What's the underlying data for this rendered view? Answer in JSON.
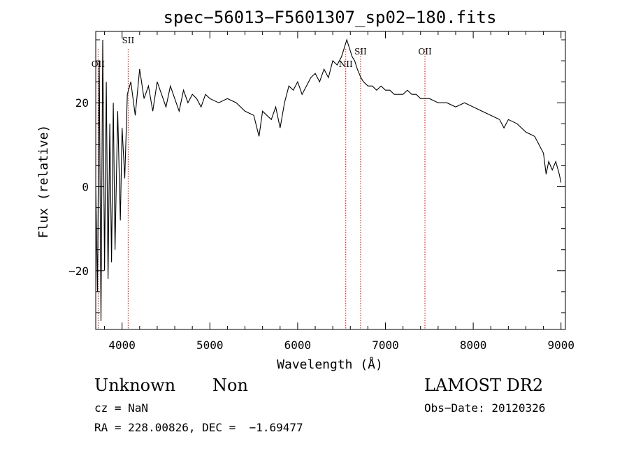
{
  "chart_data": {
    "type": "line",
    "title": "spec−56013−F5601307_sp02−180.fits",
    "xlabel": "Wavelength (Å)",
    "ylabel": "Flux (relative)",
    "xlim": [
      3700,
      9050
    ],
    "ylim": [
      -34,
      37
    ],
    "xticks": [
      4000,
      5000,
      6000,
      7000,
      8000,
      9000
    ],
    "xtick_labels": [
      "4000",
      "5000",
      "6000",
      "7000",
      "8000",
      "9000"
    ],
    "yticks": [
      -20,
      0,
      20
    ],
    "ytick_labels": [
      "−20",
      "0",
      "20"
    ],
    "series": [
      {
        "x": [
          3700,
          3720,
          3740,
          3760,
          3780,
          3800,
          3820,
          3840,
          3860,
          3880,
          3900,
          3920,
          3950,
          3980,
          4000,
          4030,
          4060,
          4100,
          4150,
          4200,
          4250,
          4300,
          4350,
          4400,
          4450,
          4500,
          4550,
          4600,
          4650,
          4700,
          4750,
          4800,
          4850,
          4900,
          4950,
          5000,
          5100,
          5200,
          5300,
          5400,
          5500,
          5560,
          5600,
          5650,
          5700,
          5750,
          5800,
          5850,
          5900,
          5950,
          6000,
          6050,
          6100,
          6150,
          6200,
          6250,
          6300,
          6350,
          6400,
          6450,
          6500,
          6530,
          6560,
          6590,
          6620,
          6650,
          6680,
          6700,
          6720,
          6750,
          6800,
          6850,
          6900,
          6950,
          7000,
          7050,
          7100,
          7150,
          7200,
          7250,
          7300,
          7350,
          7400,
          7450,
          7500,
          7600,
          7700,
          7800,
          7900,
          8000,
          8100,
          8200,
          8300,
          8350,
          8400,
          8500,
          8600,
          8700,
          8750,
          8800,
          8830,
          8860,
          8900,
          8940,
          8980,
          9000
        ],
        "y": [
          0,
          -25,
          30,
          -32,
          35,
          -20,
          25,
          -22,
          15,
          -18,
          20,
          -15,
          18,
          -8,
          14,
          2,
          22,
          25,
          17,
          28,
          21,
          24,
          18,
          25,
          22,
          19,
          24,
          21,
          18,
          23,
          20,
          22,
          21,
          19,
          22,
          21,
          20,
          21,
          20,
          18,
          17,
          12,
          18,
          17,
          16,
          19,
          14,
          20,
          24,
          23,
          25,
          22,
          24,
          26,
          27,
          25,
          28,
          26,
          30,
          29,
          31,
          33,
          35,
          33,
          31,
          30,
          28,
          27,
          26,
          25,
          24,
          24,
          23,
          24,
          23,
          23,
          22,
          22,
          22,
          23,
          22,
          22,
          21,
          21,
          21,
          20,
          20,
          19,
          20,
          19,
          18,
          17,
          16,
          14,
          16,
          15,
          13,
          12,
          10,
          8,
          3,
          6,
          4,
          6,
          3,
          1
        ]
      }
    ],
    "line_markers": [
      {
        "label": "OII",
        "x": 3727
      },
      {
        "label": "SII",
        "x": 4069
      },
      {
        "label": "NII",
        "x": 6548
      },
      {
        "label": "SII",
        "x": 6717
      },
      {
        "label": "OII",
        "x": 7450
      }
    ],
    "marker_color": "#cc0000",
    "line_color": "#000000"
  },
  "info": {
    "object_class": "Unknown",
    "subclass": "Non",
    "survey": "LAMOST DR2",
    "cz": "cz = NaN",
    "obs_date": "Obs−Date: 20120326",
    "coords": "RA = 228.00826, DEC =  −1.69477"
  }
}
